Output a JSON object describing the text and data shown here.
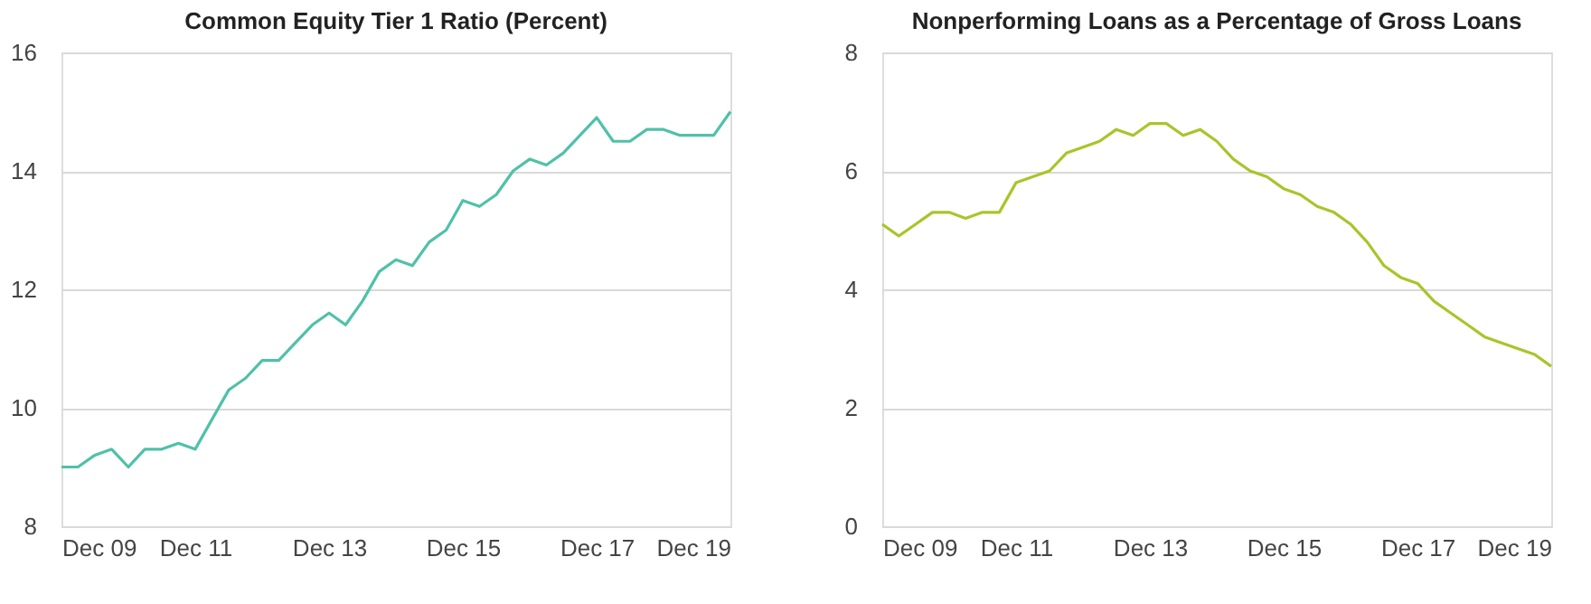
{
  "chart_data": [
    {
      "type": "line",
      "title": "Common Equity Tier 1 Ratio (Percent)",
      "x": [
        "2009-12",
        "2010-03",
        "2010-06",
        "2010-09",
        "2010-12",
        "2011-03",
        "2011-06",
        "2011-09",
        "2011-12",
        "2012-03",
        "2012-06",
        "2012-09",
        "2012-12",
        "2013-03",
        "2013-06",
        "2013-09",
        "2013-12",
        "2014-03",
        "2014-06",
        "2014-09",
        "2014-12",
        "2015-03",
        "2015-06",
        "2015-09",
        "2015-12",
        "2016-03",
        "2016-06",
        "2016-09",
        "2016-12",
        "2017-03",
        "2017-06",
        "2017-09",
        "2017-12",
        "2018-03",
        "2018-06",
        "2018-09",
        "2018-12",
        "2019-03",
        "2019-06",
        "2019-09",
        "2019-12"
      ],
      "series": [
        {
          "color": "#4fc1a9",
          "values": [
            9.0,
            9.0,
            9.2,
            9.3,
            9.0,
            9.3,
            9.3,
            9.4,
            9.3,
            9.8,
            10.3,
            10.5,
            10.8,
            10.8,
            11.1,
            11.4,
            11.6,
            11.4,
            11.8,
            12.3,
            12.5,
            12.4,
            12.8,
            13.0,
            13.5,
            13.4,
            13.6,
            14.0,
            14.2,
            14.1,
            14.3,
            14.6,
            14.9,
            14.5,
            14.5,
            14.7,
            14.7,
            14.6,
            14.6,
            14.6,
            15.0
          ]
        }
      ],
      "xlim": [
        "2009-12",
        "2019-12"
      ],
      "xticks": [
        {
          "value": "2009-12",
          "label": "Dec 09"
        },
        {
          "value": "2011-12",
          "label": "Dec 11"
        },
        {
          "value": "2013-12",
          "label": "Dec 13"
        },
        {
          "value": "2015-12",
          "label": "Dec 15"
        },
        {
          "value": "2017-12",
          "label": "Dec 17"
        },
        {
          "value": "2019-12",
          "label": "Dec 19"
        }
      ],
      "ylim": [
        8,
        16
      ],
      "yticks": [
        8,
        10,
        12,
        14,
        16
      ],
      "grid": "y",
      "marker": "none",
      "line_style": "solid"
    },
    {
      "type": "line",
      "title": "Nonperforming Loans as a Percentage of Gross Loans",
      "x": [
        "2009-12",
        "2010-03",
        "2010-06",
        "2010-09",
        "2010-12",
        "2011-03",
        "2011-06",
        "2011-09",
        "2011-12",
        "2012-03",
        "2012-06",
        "2012-09",
        "2012-12",
        "2013-03",
        "2013-06",
        "2013-09",
        "2013-12",
        "2014-03",
        "2014-06",
        "2014-09",
        "2014-12",
        "2015-03",
        "2015-06",
        "2015-09",
        "2015-12",
        "2016-03",
        "2016-06",
        "2016-09",
        "2016-12",
        "2017-03",
        "2017-06",
        "2017-09",
        "2017-12",
        "2018-03",
        "2018-06",
        "2018-09",
        "2018-12",
        "2019-03",
        "2019-06",
        "2019-09",
        "2019-12"
      ],
      "series": [
        {
          "color": "#a8c52a",
          "values": [
            5.1,
            4.9,
            5.1,
            5.3,
            5.3,
            5.2,
            5.3,
            5.3,
            5.8,
            5.9,
            6.0,
            6.3,
            6.4,
            6.5,
            6.7,
            6.6,
            6.8,
            6.8,
            6.6,
            6.7,
            6.5,
            6.2,
            6.0,
            5.9,
            5.7,
            5.6,
            5.4,
            5.3,
            5.1,
            4.8,
            4.4,
            4.2,
            4.1,
            3.8,
            3.6,
            3.4,
            3.2,
            3.1,
            3.0,
            2.9,
            2.7
          ]
        }
      ],
      "xlim": [
        "2009-12",
        "2019-12"
      ],
      "xticks": [
        {
          "value": "2009-12",
          "label": "Dec 09"
        },
        {
          "value": "2011-12",
          "label": "Dec 11"
        },
        {
          "value": "2013-12",
          "label": "Dec 13"
        },
        {
          "value": "2015-12",
          "label": "Dec 15"
        },
        {
          "value": "2017-12",
          "label": "Dec 17"
        },
        {
          "value": "2019-12",
          "label": "Dec 19"
        }
      ],
      "ylim": [
        0,
        8
      ],
      "yticks": [
        0,
        2,
        4,
        6,
        8
      ],
      "grid": "y",
      "marker": "none",
      "line_style": "solid"
    }
  ]
}
